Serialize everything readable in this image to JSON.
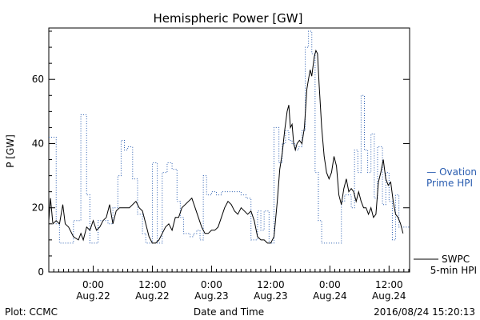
{
  "chart_data": {
    "type": "line",
    "title": "Hemispheric Power [GW]",
    "ylabel": "P [GW]",
    "xlabel": "Date and Time",
    "ylim": [
      0,
      76
    ],
    "xlim": [
      "2016-08-21 15:00",
      "2016-08-24 16:10"
    ],
    "yticks": [
      0,
      20,
      40,
      60
    ],
    "xticks": [
      {
        "x": "2016-08-22 00:00",
        "time": "0:00",
        "date": "Aug.22"
      },
      {
        "x": "2016-08-22 12:00",
        "time": "12:00",
        "date": "Aug.22"
      },
      {
        "x": "2016-08-23 00:00",
        "time": "0:00",
        "date": "Aug.23"
      },
      {
        "x": "2016-08-23 12:00",
        "time": "12:00",
        "date": "Aug.23"
      },
      {
        "x": "2016-08-24 00:00",
        "time": "0:00",
        "date": "Aug.24"
      },
      {
        "x": "2016-08-24 12:00",
        "time": "12:00",
        "date": "Aug.24"
      }
    ],
    "grid": false,
    "footer_left": "Plot: CCMC",
    "footer_right": "2016/08/24 15:20:13",
    "series": [
      {
        "name": "SWPC 5-min HPI",
        "legend_lines": [
          "SWPC",
          "5-min HPI"
        ],
        "color": "#000000",
        "style": "solid",
        "points": [
          [
            "2016-08-21 15:00",
            16
          ],
          [
            "2016-08-21 15:20",
            23
          ],
          [
            "2016-08-21 15:50",
            15
          ],
          [
            "2016-08-21 16:30",
            16
          ],
          [
            "2016-08-21 17:10",
            15
          ],
          [
            "2016-08-21 17:50",
            21
          ],
          [
            "2016-08-21 18:20",
            15
          ],
          [
            "2016-08-21 19:00",
            14
          ],
          [
            "2016-08-21 20:00",
            11
          ],
          [
            "2016-08-21 21:00",
            10
          ],
          [
            "2016-08-21 21:30",
            12
          ],
          [
            "2016-08-21 22:00",
            10
          ],
          [
            "2016-08-21 22:40",
            14
          ],
          [
            "2016-08-21 23:20",
            13
          ],
          [
            "2016-08-22 00:00",
            16
          ],
          [
            "2016-08-22 00:40",
            13
          ],
          [
            "2016-08-22 01:20",
            14
          ],
          [
            "2016-08-22 02:00",
            16
          ],
          [
            "2016-08-22 02:40",
            17
          ],
          [
            "2016-08-22 03:20",
            21
          ],
          [
            "2016-08-22 04:00",
            15
          ],
          [
            "2016-08-22 04:40",
            19
          ],
          [
            "2016-08-22 05:20",
            20
          ],
          [
            "2016-08-22 06:20",
            20
          ],
          [
            "2016-08-22 07:20",
            20
          ],
          [
            "2016-08-22 08:00",
            21
          ],
          [
            "2016-08-22 08:40",
            22
          ],
          [
            "2016-08-22 09:20",
            20
          ],
          [
            "2016-08-22 10:00",
            19
          ],
          [
            "2016-08-22 10:40",
            15
          ],
          [
            "2016-08-22 11:20",
            11
          ],
          [
            "2016-08-22 12:00",
            9
          ],
          [
            "2016-08-22 12:40",
            9
          ],
          [
            "2016-08-22 13:20",
            10
          ],
          [
            "2016-08-22 14:00",
            12
          ],
          [
            "2016-08-22 14:40",
            14
          ],
          [
            "2016-08-22 15:20",
            15
          ],
          [
            "2016-08-22 16:00",
            13
          ],
          [
            "2016-08-22 16:40",
            17
          ],
          [
            "2016-08-22 17:20",
            17
          ],
          [
            "2016-08-22 18:00",
            20
          ],
          [
            "2016-08-22 18:40",
            21
          ],
          [
            "2016-08-22 19:20",
            22
          ],
          [
            "2016-08-22 20:00",
            23
          ],
          [
            "2016-08-22 20:40",
            20
          ],
          [
            "2016-08-22 21:20",
            17
          ],
          [
            "2016-08-22 22:00",
            14
          ],
          [
            "2016-08-22 22:40",
            12
          ],
          [
            "2016-08-22 23:20",
            12
          ],
          [
            "2016-08-23 00:00",
            13
          ],
          [
            "2016-08-23 00:40",
            13
          ],
          [
            "2016-08-23 01:20",
            14
          ],
          [
            "2016-08-23 02:00",
            17
          ],
          [
            "2016-08-23 02:40",
            20
          ],
          [
            "2016-08-23 03:20",
            22
          ],
          [
            "2016-08-23 04:00",
            21
          ],
          [
            "2016-08-23 04:40",
            19
          ],
          [
            "2016-08-23 05:20",
            18
          ],
          [
            "2016-08-23 06:00",
            20
          ],
          [
            "2016-08-23 06:40",
            19
          ],
          [
            "2016-08-23 07:20",
            18
          ],
          [
            "2016-08-23 08:00",
            19
          ],
          [
            "2016-08-23 08:40",
            16
          ],
          [
            "2016-08-23 09:20",
            11
          ],
          [
            "2016-08-23 10:00",
            10
          ],
          [
            "2016-08-23 10:40",
            10
          ],
          [
            "2016-08-23 11:20",
            9
          ],
          [
            "2016-08-23 12:00",
            9
          ],
          [
            "2016-08-23 12:40",
            11
          ],
          [
            "2016-08-23 13:20",
            22
          ],
          [
            "2016-08-23 13:50",
            32
          ],
          [
            "2016-08-23 14:20",
            37
          ],
          [
            "2016-08-23 14:50",
            44
          ],
          [
            "2016-08-23 15:20",
            50
          ],
          [
            "2016-08-23 15:40",
            52
          ],
          [
            "2016-08-23 16:00",
            45
          ],
          [
            "2016-08-23 16:20",
            46
          ],
          [
            "2016-08-23 16:40",
            40
          ],
          [
            "2016-08-23 17:00",
            38
          ],
          [
            "2016-08-23 17:20",
            40
          ],
          [
            "2016-08-23 17:50",
            41
          ],
          [
            "2016-08-23 18:20",
            40
          ],
          [
            "2016-08-23 18:50",
            45
          ],
          [
            "2016-08-23 19:20",
            57
          ],
          [
            "2016-08-23 19:40",
            60
          ],
          [
            "2016-08-23 20:00",
            63
          ],
          [
            "2016-08-23 20:20",
            61
          ],
          [
            "2016-08-23 20:50",
            67
          ],
          [
            "2016-08-23 21:10",
            69
          ],
          [
            "2016-08-23 21:30",
            68
          ],
          [
            "2016-08-23 21:50",
            58
          ],
          [
            "2016-08-23 22:20",
            45
          ],
          [
            "2016-08-23 22:50",
            36
          ],
          [
            "2016-08-23 23:20",
            31
          ],
          [
            "2016-08-23 23:50",
            29
          ],
          [
            "2016-08-24 00:20",
            31
          ],
          [
            "2016-08-24 00:50",
            36
          ],
          [
            "2016-08-24 01:20",
            33
          ],
          [
            "2016-08-24 01:50",
            24
          ],
          [
            "2016-08-24 02:20",
            21
          ],
          [
            "2016-08-24 02:50",
            26
          ],
          [
            "2016-08-24 03:20",
            29
          ],
          [
            "2016-08-24 03:50",
            25
          ],
          [
            "2016-08-24 04:20",
            26
          ],
          [
            "2016-08-24 04:50",
            25
          ],
          [
            "2016-08-24 05:20",
            22
          ],
          [
            "2016-08-24 05:50",
            25
          ],
          [
            "2016-08-24 06:20",
            22
          ],
          [
            "2016-08-24 06:50",
            20
          ],
          [
            "2016-08-24 07:20",
            20
          ],
          [
            "2016-08-24 07:50",
            18
          ],
          [
            "2016-08-24 08:20",
            20
          ],
          [
            "2016-08-24 08:50",
            17
          ],
          [
            "2016-08-24 09:20",
            18
          ],
          [
            "2016-08-24 09:50",
            28
          ],
          [
            "2016-08-24 10:20",
            31
          ],
          [
            "2016-08-24 10:50",
            35
          ],
          [
            "2016-08-24 11:20",
            29
          ],
          [
            "2016-08-24 11:50",
            27
          ],
          [
            "2016-08-24 12:20",
            28
          ],
          [
            "2016-08-24 12:50",
            22
          ],
          [
            "2016-08-24 13:20",
            18
          ],
          [
            "2016-08-24 13:50",
            17
          ],
          [
            "2016-08-24 14:20",
            15
          ],
          [
            "2016-08-24 14:50",
            12
          ]
        ]
      },
      {
        "name": "Ovation Prime HPI",
        "legend_lines": [
          "— Ovation",
          "Prime HPI"
        ],
        "color": "#2a5db0",
        "style": "dotted-steps",
        "points": [
          [
            "2016-08-21 15:00",
            42
          ],
          [
            "2016-08-21 16:30",
            15
          ],
          [
            "2016-08-21 17:10",
            9
          ],
          [
            "2016-08-21 20:00",
            16
          ],
          [
            "2016-08-21 21:30",
            49
          ],
          [
            "2016-08-21 22:40",
            24
          ],
          [
            "2016-08-21 23:20",
            9
          ],
          [
            "2016-08-22 01:00",
            16
          ],
          [
            "2016-08-22 03:00",
            15
          ],
          [
            "2016-08-22 04:00",
            20
          ],
          [
            "2016-08-22 05:00",
            30
          ],
          [
            "2016-08-22 05:40",
            41
          ],
          [
            "2016-08-22 06:20",
            38
          ],
          [
            "2016-08-22 07:00",
            39
          ],
          [
            "2016-08-22 08:00",
            29
          ],
          [
            "2016-08-22 09:00",
            18
          ],
          [
            "2016-08-22 10:00",
            12
          ],
          [
            "2016-08-22 10:40",
            9
          ],
          [
            "2016-08-22 12:00",
            34
          ],
          [
            "2016-08-22 13:00",
            9
          ],
          [
            "2016-08-22 14:00",
            31
          ],
          [
            "2016-08-22 15:00",
            34
          ],
          [
            "2016-08-22 16:00",
            32
          ],
          [
            "2016-08-22 17:00",
            22
          ],
          [
            "2016-08-22 17:40",
            17
          ],
          [
            "2016-08-22 18:20",
            12
          ],
          [
            "2016-08-22 19:00",
            12
          ],
          [
            "2016-08-22 19:40",
            11
          ],
          [
            "2016-08-22 20:20",
            12
          ],
          [
            "2016-08-22 21:00",
            13
          ],
          [
            "2016-08-22 21:40",
            10
          ],
          [
            "2016-08-22 22:20",
            30
          ],
          [
            "2016-08-22 23:00",
            24
          ],
          [
            "2016-08-23 00:00",
            25
          ],
          [
            "2016-08-23 01:00",
            24
          ],
          [
            "2016-08-23 02:00",
            25
          ],
          [
            "2016-08-23 04:00",
            25
          ],
          [
            "2016-08-23 06:00",
            24
          ],
          [
            "2016-08-23 07:00",
            23
          ],
          [
            "2016-08-23 08:00",
            10
          ],
          [
            "2016-08-23 08:40",
            10
          ],
          [
            "2016-08-23 09:20",
            19
          ],
          [
            "2016-08-23 10:00",
            13
          ],
          [
            "2016-08-23 10:40",
            19
          ],
          [
            "2016-08-23 11:40",
            9
          ],
          [
            "2016-08-23 12:40",
            45
          ],
          [
            "2016-08-23 13:40",
            34
          ],
          [
            "2016-08-23 14:20",
            40
          ],
          [
            "2016-08-23 15:00",
            44
          ],
          [
            "2016-08-23 15:40",
            41
          ],
          [
            "2016-08-23 16:20",
            40
          ],
          [
            "2016-08-23 17:00",
            38
          ],
          [
            "2016-08-23 17:40",
            39
          ],
          [
            "2016-08-23 18:20",
            44
          ],
          [
            "2016-08-23 19:00",
            70
          ],
          [
            "2016-08-23 19:40",
            75
          ],
          [
            "2016-08-23 20:20",
            68
          ],
          [
            "2016-08-23 21:00",
            31
          ],
          [
            "2016-08-23 21:40",
            16
          ],
          [
            "2016-08-23 22:20",
            9
          ],
          [
            "2016-08-24 00:00",
            9
          ],
          [
            "2016-08-24 01:20",
            9
          ],
          [
            "2016-08-24 02:20",
            22
          ],
          [
            "2016-08-24 03:00",
            24
          ],
          [
            "2016-08-24 03:40",
            24
          ],
          [
            "2016-08-24 04:20",
            20
          ],
          [
            "2016-08-24 05:00",
            38
          ],
          [
            "2016-08-24 05:40",
            31
          ],
          [
            "2016-08-24 06:20",
            55
          ],
          [
            "2016-08-24 07:00",
            38
          ],
          [
            "2016-08-24 07:40",
            31
          ],
          [
            "2016-08-24 08:20",
            43
          ],
          [
            "2016-08-24 09:00",
            23
          ],
          [
            "2016-08-24 09:40",
            39
          ],
          [
            "2016-08-24 10:40",
            21
          ],
          [
            "2016-08-24 11:20",
            31
          ],
          [
            "2016-08-24 12:00",
            22
          ],
          [
            "2016-08-24 12:40",
            10
          ],
          [
            "2016-08-24 13:20",
            24
          ],
          [
            "2016-08-24 14:00",
            14
          ]
        ]
      }
    ]
  }
}
